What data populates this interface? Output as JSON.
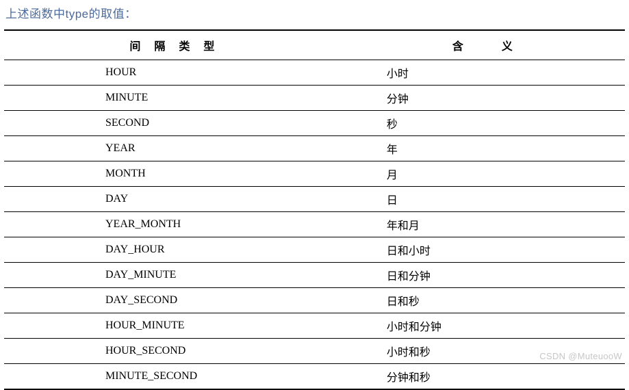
{
  "title_text": "上述函数中type的取值：",
  "title_color": "#4b6a9b",
  "header": {
    "col1": "间 隔 类 型",
    "col2": "含　　义"
  },
  "rows": [
    {
      "type": "HOUR",
      "meaning": "小时"
    },
    {
      "type": "MINUTE",
      "meaning": "分钟"
    },
    {
      "type": "SECOND",
      "meaning": "秒"
    },
    {
      "type": "YEAR",
      "meaning": "年"
    },
    {
      "type": "MONTH",
      "meaning": "月"
    },
    {
      "type": "DAY",
      "meaning": "日"
    },
    {
      "type": "YEAR_MONTH",
      "meaning": "年和月"
    },
    {
      "type": "DAY_HOUR",
      "meaning": "日和小时"
    },
    {
      "type": "DAY_MINUTE",
      "meaning": "日和分钟"
    },
    {
      "type": "DAY_SECOND",
      "meaning": "日和秒"
    },
    {
      "type": "HOUR_MINUTE",
      "meaning": "小时和分钟"
    },
    {
      "type": "HOUR_SECOND",
      "meaning": "小时和秒"
    },
    {
      "type": "MINUTE_SECOND",
      "meaning": "分钟和秒"
    }
  ],
  "watermark": "CSDN @MuteuooW",
  "colors": {
    "border": "#000000",
    "text": "#000000",
    "background": "#ffffff",
    "watermark": "#c6c6c6"
  }
}
